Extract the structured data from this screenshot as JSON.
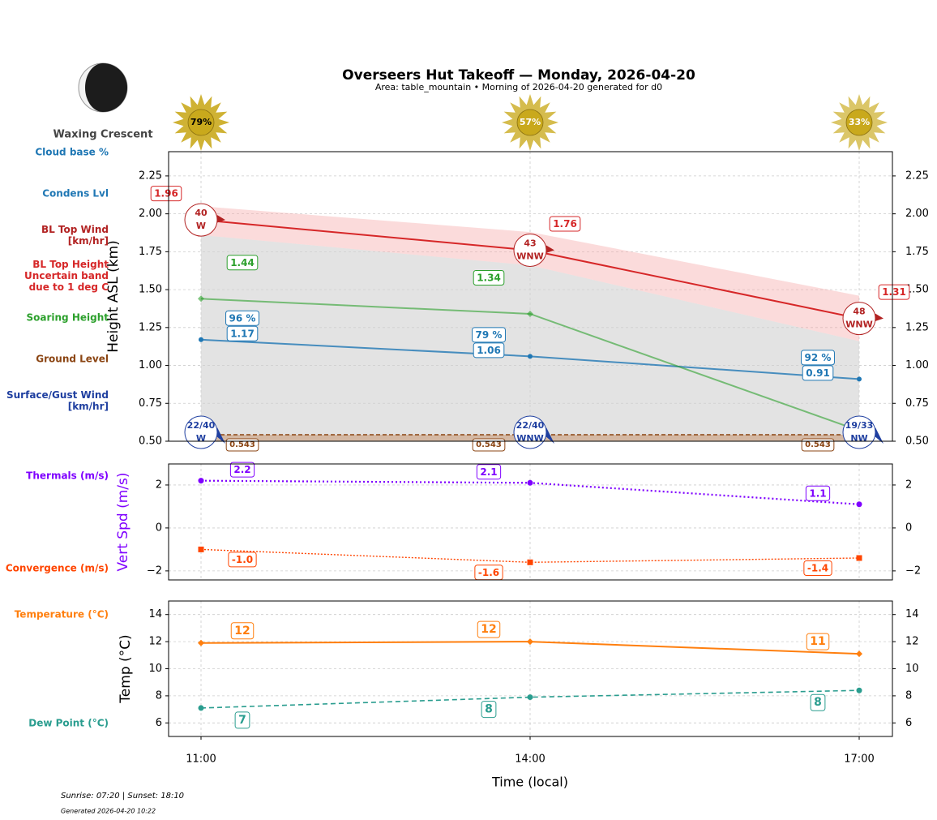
{
  "chart_data": [
    {
      "type": "line",
      "title": "Overseers Hut Takeoff — Monday, 2026-04-20",
      "subtitle": "Area: table_mountain • Morning of 2026-04-20 generated for d0",
      "ylabel": "Height ASL (km)",
      "ylim": [
        0.5,
        2.41
      ],
      "yticks": [
        {
          "value": 0.5,
          "label": "0.50"
        },
        0.75,
        {
          "value": 1,
          "label": "1.00"
        },
        1.25,
        {
          "value": 1.5,
          "label": "1.50"
        },
        1.75,
        {
          "value": 2,
          "label": "2.00"
        },
        2.25
      ],
      "grid": true,
      "sunshine": {
        "values": [
          79,
          57,
          33
        ],
        "value_labels": [
          "79%",
          "57%",
          "33%"
        ],
        "color": "#c9a91c"
      },
      "series": [
        {
          "name": "BL Top Height\nUncertain band\ndue to 1 deg C",
          "color": "#d62728",
          "values": [
            1.96,
            1.76,
            1.31
          ],
          "band": {
            "upper": [
              2.05,
              1.88,
              1.46
            ],
            "lower": [
              1.86,
              1.66,
              1.16
            ],
            "color": "#f4a6a6"
          }
        },
        {
          "name": "Soaring Height",
          "color": "#2ca02c",
          "values": [
            1.44,
            1.34,
            0.57
          ],
          "value_labels": [
            "1.44",
            "1.34",
            null
          ]
        },
        {
          "name": "Condens Lvl",
          "color": "#1f77b4",
          "values": [
            1.17,
            1.06,
            0.91
          ]
        },
        {
          "name": "Ground Level",
          "color": "#8b4513",
          "values": [
            0.543,
            0.543,
            0.543
          ]
        }
      ],
      "cloud_base": {
        "name": "Cloud base %",
        "color": "#1f77b4",
        "values": [
          96,
          79,
          92
        ],
        "value_labels": [
          "96 %",
          "79 %",
          "92 %"
        ]
      },
      "winds": [
        {
          "name": "BL Top Wind\n[km/hr]",
          "color": "#b22222",
          "values": [
            40,
            43,
            48
          ],
          "directions": [
            "W",
            "WNW",
            "WNW"
          ]
        },
        {
          "name": "Surface/Gust Wind\n[km/hr]",
          "color": "#1f3fa0",
          "values": [
            22,
            22,
            19
          ],
          "gust": [
            40,
            40,
            33
          ],
          "value_labels": [
            "22/40",
            "22/40",
            "19/33"
          ],
          "directions": [
            "W",
            "WNW",
            "NW"
          ]
        }
      ]
    },
    {
      "type": "line",
      "ylabel": "Vert Spd (m/s)",
      "ylabel_color": "#7f00ff",
      "ylim": [
        -2.42,
        2.98
      ],
      "yticks": [
        {
          "value": -2,
          "label": "−2"
        },
        0,
        2
      ],
      "grid": true,
      "series": [
        {
          "name": "Thermals (m/s)",
          "color": "#7f00ff",
          "values": [
            2.2,
            2.1,
            1.1
          ]
        },
        {
          "name": "Convergence (m/s)",
          "color": "#ff4500",
          "values": [
            -1.0,
            -1.6,
            -1.4
          ],
          "value_labels": [
            "-1.0",
            "-1.6",
            "-1.4"
          ]
        }
      ]
    },
    {
      "type": "line",
      "ylabel": "Temp (°C)",
      "xlabel": "Time (local)",
      "categories": [
        "11:00",
        "14:00",
        "17:00"
      ],
      "ylim": [
        5.0,
        15.0
      ],
      "yticks": [
        6,
        8,
        10,
        12,
        14
      ],
      "grid": true,
      "series": [
        {
          "name": "Temperature (°C)",
          "color": "#ff7f0e",
          "values": [
            11.9,
            12.0,
            11.1
          ],
          "value_labels": [
            "12",
            "12",
            "11"
          ]
        },
        {
          "name": "Dew Point (°C)",
          "color": "#2a9d8f",
          "values": [
            7.1,
            7.9,
            8.4
          ],
          "value_labels": [
            "7",
            "8",
            "8"
          ]
        }
      ]
    }
  ],
  "moon": {
    "phase": "Waxing Crescent"
  },
  "footer": {
    "sun_times": "Sunrise: 07:20 | Sunset: 18:10",
    "generated": "Generated 2026-04-20 10:22"
  }
}
